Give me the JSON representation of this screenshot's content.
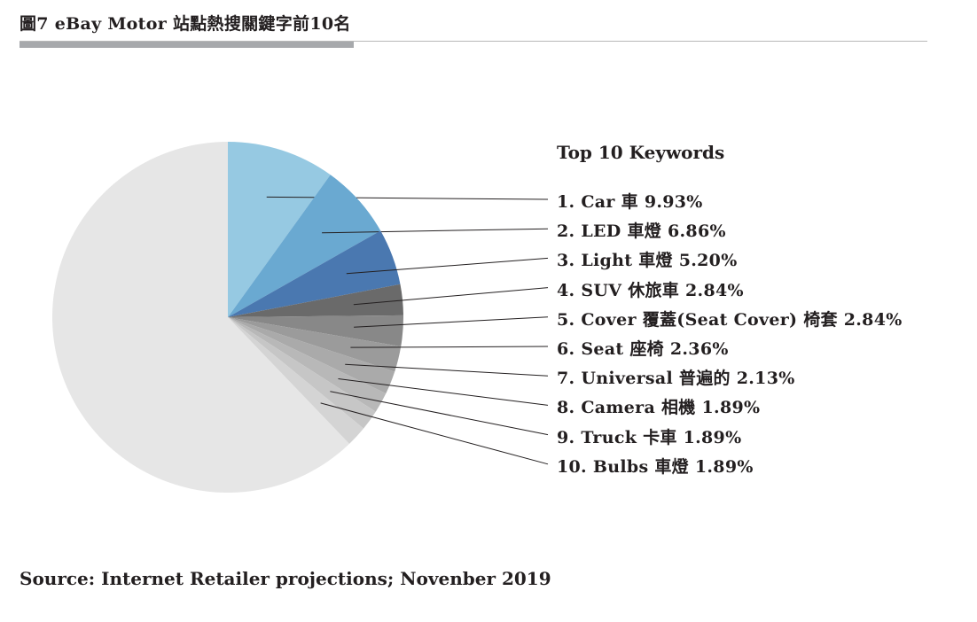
{
  "figure": {
    "title": "圖7 eBay Motor 站點熱搜關鍵字前10名",
    "source": "Source: Internet Retailer projections; Novenber 2019"
  },
  "chart_data": {
    "type": "pie",
    "legend_title": "Top 10 Keywords",
    "legend_position": "right",
    "slices": [
      {
        "label": "1. Car 車 9.93%",
        "value": 9.93,
        "color": "#96c9e2"
      },
      {
        "label": "2. LED 車燈 6.86%",
        "value": 6.86,
        "color": "#6aa9d1"
      },
      {
        "label": "3. Light 車燈 5.20%",
        "value": 5.2,
        "color": "#4a78b0"
      },
      {
        "label": "4. SUV 休旅車 2.84%",
        "value": 2.84,
        "color": "#6a6a6a"
      },
      {
        "label": "5. Cover 覆蓋(Seat Cover) 椅套 2.84%",
        "value": 2.84,
        "color": "#888888"
      },
      {
        "label": "6. Seat 座椅 2.36%",
        "value": 2.36,
        "color": "#9b9b9b"
      },
      {
        "label": "7. Universal 普遍的 2.13%",
        "value": 2.13,
        "color": "#aaaaaa"
      },
      {
        "label": "8. Camera 相機 1.89%",
        "value": 1.89,
        "color": "#b8b8b8"
      },
      {
        "label": "9. Truck 卡車 1.89%",
        "value": 1.89,
        "color": "#c6c6c6"
      },
      {
        "label": "10. Bulbs 車燈 1.89%",
        "value": 1.89,
        "color": "#d4d4d4"
      }
    ],
    "remainder_color": "#e6e6e6"
  }
}
